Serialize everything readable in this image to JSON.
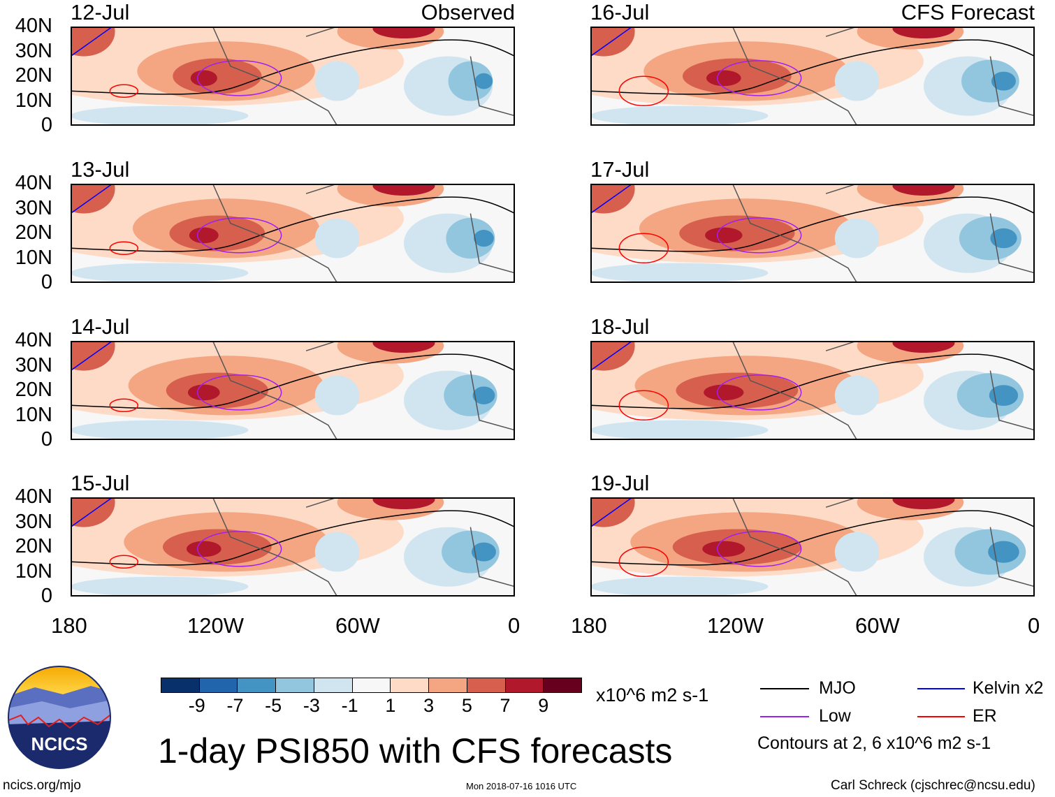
{
  "left_column_title": "Observed",
  "right_column_title": "CFS Forecast",
  "panels_left": [
    {
      "date": "12-Jul"
    },
    {
      "date": "13-Jul"
    },
    {
      "date": "14-Jul"
    },
    {
      "date": "15-Jul"
    }
  ],
  "panels_right": [
    {
      "date": "16-Jul"
    },
    {
      "date": "17-Jul"
    },
    {
      "date": "18-Jul"
    },
    {
      "date": "19-Jul"
    }
  ],
  "lat_labels": [
    "40N",
    "30N",
    "20N",
    "10N",
    "0"
  ],
  "lon_labels": [
    "180",
    "120W",
    "60W",
    "0"
  ],
  "colorbar": {
    "colors": [
      "#08306b",
      "#2166ac",
      "#4393c3",
      "#92c5de",
      "#d1e5f0",
      "#f7f7f7",
      "#fddbc7",
      "#f4a582",
      "#d6604d",
      "#b2182b",
      "#67001f"
    ],
    "ticks": [
      "-9",
      "-7",
      "-5",
      "-3",
      "-1",
      "1",
      "3",
      "5",
      "7",
      "9"
    ],
    "units": "x10^6 m2 s-1"
  },
  "legend": {
    "items": [
      {
        "label": "MJO",
        "color": "#000000"
      },
      {
        "label": "Kelvin x2",
        "color": "#0000ff"
      },
      {
        "label": "Low",
        "color": "#a020f0"
      },
      {
        "label": "ER",
        "color": "#ff0000"
      }
    ],
    "note": "Contours at 2, 6 x10^6 m2 s-1"
  },
  "title": "1-day PSI850 with CFS forecasts",
  "logo_text": "NCICS",
  "footer": {
    "url": "ncics.org/mjo",
    "timestamp": "Mon 2018-07-16 1016 UTC",
    "credit": "Carl Schreck (cjschrec@ncsu.edu)"
  }
}
